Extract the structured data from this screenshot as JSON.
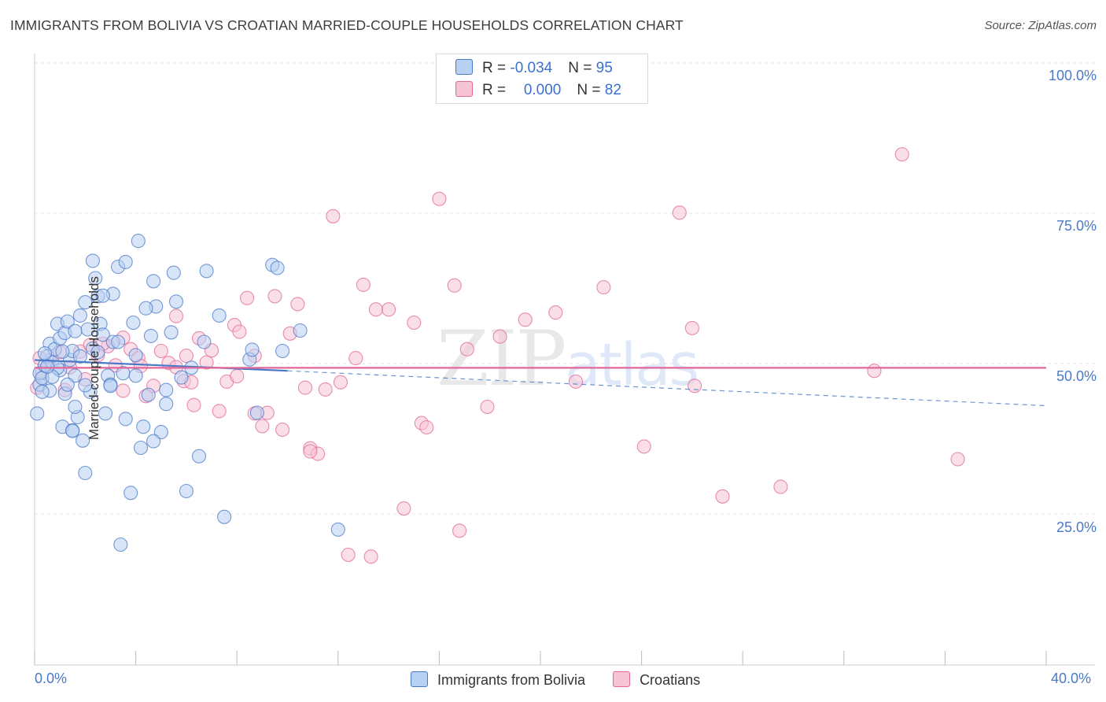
{
  "header": {
    "title": "IMMIGRANTS FROM BOLIVIA VS CROATIAN MARRIED-COUPLE HOUSEHOLDS CORRELATION CHART",
    "source": "Source: ZipAtlas.com"
  },
  "legend": {
    "series1": {
      "r_label": "R = ",
      "r_value": "-0.034",
      "n_label": "N = ",
      "n_value": "95"
    },
    "series2": {
      "r_label": "R = ",
      "r_value": "0.000",
      "n_label": "N = ",
      "n_value": "82"
    }
  },
  "watermark": {
    "zip": "ZIP",
    "atlas": "atlas"
  },
  "colors": {
    "blue": "#4a79c7",
    "blue_fill": "#b8d0f2",
    "pink": "#e2679a",
    "pink_fill": "#f7c4d6"
  },
  "chart_data": {
    "type": "scatter",
    "title": "IMMIGRANTS FROM BOLIVIA VS CROATIAN MARRIED-COUPLE HOUSEHOLDS CORRELATION CHART",
    "xlabel": "",
    "ylabel": "Married-couple Households",
    "xlim": [
      0,
      40
    ],
    "ylim": [
      2,
      103
    ],
    "x_tick_labels": [
      "0.0%",
      "40.0%"
    ],
    "y_ticks": [
      {
        "value": 100,
        "label": "100.0%"
      },
      {
        "value": 75,
        "label": "75.0%"
      },
      {
        "value": 50,
        "label": "50.0%"
      },
      {
        "value": 25,
        "label": "25.0%"
      }
    ],
    "legend_position": "top-center",
    "series": [
      {
        "name": "Immigrants from Bolivia",
        "color": "#4a79c7",
        "r": -0.034,
        "n": 95,
        "trend": {
          "x": [
            0,
            10
          ],
          "y": [
            50.6,
            48.8
          ],
          "dashed_to": [
            40,
            43.0
          ]
        },
        "points": [
          [
            0.1,
            41.7
          ],
          [
            0.2,
            46.5
          ],
          [
            0.2,
            48.4
          ],
          [
            0.3,
            47.6
          ],
          [
            0.4,
            49.7
          ],
          [
            0.5,
            51.2
          ],
          [
            0.6,
            53.3
          ],
          [
            0.6,
            45.5
          ],
          [
            0.7,
            50.2
          ],
          [
            0.8,
            52.4
          ],
          [
            0.9,
            56.6
          ],
          [
            1.0,
            54.2
          ],
          [
            1.0,
            48.9
          ],
          [
            1.1,
            39.5
          ],
          [
            1.2,
            55.1
          ],
          [
            1.2,
            45.0
          ],
          [
            1.3,
            57.0
          ],
          [
            1.4,
            50.6
          ],
          [
            1.5,
            52.1
          ],
          [
            1.5,
            38.9
          ],
          [
            1.6,
            48.0
          ],
          [
            1.7,
            41.1
          ],
          [
            1.8,
            58.0
          ],
          [
            1.8,
            51.2
          ],
          [
            1.9,
            37.2
          ],
          [
            2.0,
            60.2
          ],
          [
            2.0,
            31.8
          ],
          [
            2.1,
            55.7
          ],
          [
            2.2,
            45.3
          ],
          [
            2.3,
            67.1
          ],
          [
            2.3,
            52.5
          ],
          [
            2.4,
            64.2
          ],
          [
            2.5,
            61.2
          ],
          [
            2.6,
            56.6
          ],
          [
            2.7,
            54.8
          ],
          [
            2.8,
            41.7
          ],
          [
            2.9,
            48.0
          ],
          [
            3.0,
            46.5
          ],
          [
            3.1,
            53.6
          ],
          [
            3.3,
            66.1
          ],
          [
            3.4,
            19.9
          ],
          [
            3.5,
            48.4
          ],
          [
            3.6,
            40.8
          ],
          [
            3.8,
            28.5
          ],
          [
            3.9,
            56.8
          ],
          [
            4.0,
            48.0
          ],
          [
            4.2,
            36.0
          ],
          [
            4.3,
            39.5
          ],
          [
            4.5,
            44.8
          ],
          [
            4.6,
            54.6
          ],
          [
            4.7,
            63.7
          ],
          [
            4.8,
            59.5
          ],
          [
            5.0,
            38.6
          ],
          [
            5.2,
            45.6
          ],
          [
            5.4,
            55.2
          ],
          [
            5.5,
            65.1
          ],
          [
            5.6,
            60.3
          ],
          [
            5.8,
            47.7
          ],
          [
            6.0,
            28.8
          ],
          [
            6.2,
            49.3
          ],
          [
            6.5,
            34.6
          ],
          [
            6.7,
            53.6
          ],
          [
            6.8,
            65.4
          ],
          [
            3.1,
            61.6
          ],
          [
            3.3,
            53.6
          ],
          [
            3.6,
            66.9
          ],
          [
            2.5,
            51.9
          ],
          [
            1.3,
            46.5
          ],
          [
            0.9,
            49.3
          ],
          [
            7.3,
            58.0
          ],
          [
            7.5,
            24.5
          ],
          [
            8.5,
            50.7
          ],
          [
            8.6,
            52.3
          ],
          [
            8.8,
            41.8
          ],
          [
            9.4,
            66.4
          ],
          [
            9.6,
            65.9
          ],
          [
            9.8,
            52.1
          ],
          [
            10.5,
            55.5
          ],
          [
            12.0,
            22.4
          ],
          [
            4.1,
            70.4
          ],
          [
            4.4,
            59.2
          ],
          [
            5.2,
            43.3
          ],
          [
            1.6,
            42.8
          ],
          [
            2.0,
            46.4
          ],
          [
            0.4,
            51.7
          ],
          [
            0.7,
            47.8
          ],
          [
            1.1,
            52.0
          ],
          [
            1.6,
            55.4
          ],
          [
            3.0,
            46.3
          ],
          [
            4.0,
            51.4
          ],
          [
            2.7,
            61.3
          ],
          [
            1.5,
            38.8
          ],
          [
            0.5,
            49.5
          ],
          [
            0.3,
            45.3
          ],
          [
            4.7,
            37.1
          ]
        ]
      },
      {
        "name": "Croatians",
        "color": "#e2679a",
        "r": 0.0,
        "n": 82,
        "trend": {
          "x": [
            0,
            40
          ],
          "y": [
            49.3,
            49.3
          ]
        },
        "points": [
          [
            0.1,
            46.0
          ],
          [
            0.3,
            48.5
          ],
          [
            0.6,
            50.5
          ],
          [
            1.0,
            51.9
          ],
          [
            1.4,
            49.4
          ],
          [
            1.8,
            52.0
          ],
          [
            2.2,
            53.1
          ],
          [
            2.5,
            51.4
          ],
          [
            2.9,
            52.9
          ],
          [
            3.2,
            49.7
          ],
          [
            3.5,
            54.3
          ],
          [
            3.8,
            52.4
          ],
          [
            4.1,
            50.9
          ],
          [
            4.4,
            44.6
          ],
          [
            4.7,
            46.3
          ],
          [
            5.0,
            52.1
          ],
          [
            5.3,
            50.1
          ],
          [
            5.6,
            49.4
          ],
          [
            5.9,
            47.1
          ],
          [
            6.2,
            46.9
          ],
          [
            6.5,
            54.2
          ],
          [
            6.8,
            50.2
          ],
          [
            7.0,
            52.2
          ],
          [
            7.3,
            42.1
          ],
          [
            7.6,
            47.0
          ],
          [
            7.9,
            56.4
          ],
          [
            8.1,
            55.3
          ],
          [
            8.4,
            60.9
          ],
          [
            8.7,
            51.3
          ],
          [
            9.0,
            39.6
          ],
          [
            9.2,
            41.8
          ],
          [
            9.5,
            61.2
          ],
          [
            9.8,
            39.0
          ],
          [
            10.1,
            55.0
          ],
          [
            10.4,
            59.9
          ],
          [
            10.7,
            46.0
          ],
          [
            10.9,
            35.9
          ],
          [
            11.2,
            35.0
          ],
          [
            11.5,
            45.7
          ],
          [
            11.8,
            74.5
          ],
          [
            12.1,
            46.9
          ],
          [
            12.4,
            18.2
          ],
          [
            12.7,
            50.9
          ],
          [
            13.0,
            63.1
          ],
          [
            13.3,
            17.9
          ],
          [
            13.5,
            59.0
          ],
          [
            14.0,
            59.0
          ],
          [
            14.6,
            25.9
          ],
          [
            15.0,
            56.8
          ],
          [
            15.3,
            40.1
          ],
          [
            15.5,
            39.4
          ],
          [
            16.0,
            77.4
          ],
          [
            16.6,
            63.0
          ],
          [
            16.8,
            22.2
          ],
          [
            17.1,
            52.4
          ],
          [
            17.9,
            42.8
          ],
          [
            18.4,
            54.5
          ],
          [
            19.4,
            57.3
          ],
          [
            20.6,
            58.5
          ],
          [
            21.4,
            47.0
          ],
          [
            22.5,
            62.7
          ],
          [
            24.1,
            36.2
          ],
          [
            25.5,
            75.1
          ],
          [
            26.0,
            55.9
          ],
          [
            26.1,
            46.3
          ],
          [
            27.2,
            27.9
          ],
          [
            29.5,
            29.5
          ],
          [
            33.2,
            48.8
          ],
          [
            34.3,
            84.8
          ],
          [
            36.5,
            34.1
          ],
          [
            2.0,
            47.4
          ],
          [
            2.7,
            53.3
          ],
          [
            3.5,
            45.5
          ],
          [
            4.2,
            49.6
          ],
          [
            5.6,
            57.9
          ],
          [
            6.3,
            43.1
          ],
          [
            8.0,
            47.9
          ],
          [
            10.9,
            35.4
          ],
          [
            0.2,
            50.9
          ],
          [
            1.2,
            45.6
          ],
          [
            6.0,
            51.3
          ],
          [
            8.7,
            41.7
          ]
        ]
      }
    ]
  },
  "axis": {
    "y_label": "Married-couple Households",
    "x_min_label": "0.0%",
    "x_max_label": "40.0%",
    "y_ticks": [
      "100.0%",
      "75.0%",
      "50.0%",
      "25.0%"
    ]
  }
}
